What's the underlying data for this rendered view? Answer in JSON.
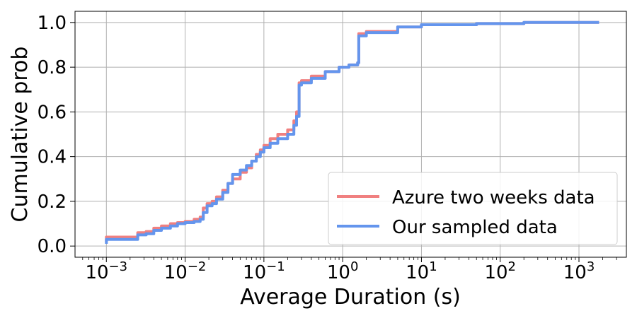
{
  "chart_data": {
    "type": "line",
    "title": "",
    "xlabel": "Average Duration (s)",
    "ylabel": "Cumulative prob",
    "xscale": "log",
    "xlim": [
      0.0004,
      4000
    ],
    "ylim": [
      -0.05,
      1.05
    ],
    "grid": true,
    "legend_position": "lower-right",
    "x_ticks": [
      {
        "value": 0.001,
        "base": "10",
        "exp": "−3"
      },
      {
        "value": 0.01,
        "base": "10",
        "exp": "−2"
      },
      {
        "value": 0.1,
        "base": "10",
        "exp": "−1"
      },
      {
        "value": 1,
        "base": "10",
        "exp": "0"
      },
      {
        "value": 10,
        "base": "10",
        "exp": "1"
      },
      {
        "value": 100,
        "base": "10",
        "exp": "2"
      },
      {
        "value": 1000,
        "base": "10",
        "exp": "3"
      }
    ],
    "y_ticks": [
      {
        "value": 0.0,
        "label": "0.0"
      },
      {
        "value": 0.2,
        "label": "0.2"
      },
      {
        "value": 0.4,
        "label": "0.4"
      },
      {
        "value": 0.6,
        "label": "0.6"
      },
      {
        "value": 0.8,
        "label": "0.8"
      },
      {
        "value": 1.0,
        "label": "1.0"
      }
    ],
    "series": [
      {
        "name": "Azure two weeks data",
        "color": "#f08080",
        "points": [
          [
            0.001,
            0.02
          ],
          [
            0.001,
            0.04
          ],
          [
            0.0018,
            0.04
          ],
          [
            0.0025,
            0.06
          ],
          [
            0.0032,
            0.065
          ],
          [
            0.004,
            0.08
          ],
          [
            0.005,
            0.09
          ],
          [
            0.0065,
            0.1
          ],
          [
            0.008,
            0.105
          ],
          [
            0.01,
            0.11
          ],
          [
            0.013,
            0.12
          ],
          [
            0.0155,
            0.13
          ],
          [
            0.017,
            0.17
          ],
          [
            0.019,
            0.19
          ],
          [
            0.022,
            0.2
          ],
          [
            0.025,
            0.22
          ],
          [
            0.03,
            0.25
          ],
          [
            0.035,
            0.28
          ],
          [
            0.04,
            0.3
          ],
          [
            0.05,
            0.33
          ],
          [
            0.06,
            0.35
          ],
          [
            0.07,
            0.38
          ],
          [
            0.08,
            0.41
          ],
          [
            0.09,
            0.43
          ],
          [
            0.1,
            0.45
          ],
          [
            0.12,
            0.48
          ],
          [
            0.15,
            0.5
          ],
          [
            0.2,
            0.52
          ],
          [
            0.24,
            0.56
          ],
          [
            0.26,
            0.6
          ],
          [
            0.28,
            0.62
          ],
          [
            0.28,
            0.73
          ],
          [
            0.3,
            0.74
          ],
          [
            0.4,
            0.76
          ],
          [
            0.6,
            0.78
          ],
          [
            0.9,
            0.8
          ],
          [
            1.2,
            0.81
          ],
          [
            1.55,
            0.82
          ],
          [
            1.6,
            0.95
          ],
          [
            2,
            0.96
          ],
          [
            5,
            0.98
          ],
          [
            10,
            0.99
          ],
          [
            50,
            0.995
          ],
          [
            200,
            1.0
          ],
          [
            1800,
            1.0
          ]
        ]
      },
      {
        "name": "Our sampled data",
        "color": "#6495ed",
        "points": [
          [
            0.001,
            0.01
          ],
          [
            0.001,
            0.03
          ],
          [
            0.0018,
            0.03
          ],
          [
            0.0025,
            0.05
          ],
          [
            0.0032,
            0.055
          ],
          [
            0.004,
            0.07
          ],
          [
            0.005,
            0.08
          ],
          [
            0.0065,
            0.09
          ],
          [
            0.008,
            0.1
          ],
          [
            0.01,
            0.105
          ],
          [
            0.013,
            0.11
          ],
          [
            0.0155,
            0.12
          ],
          [
            0.017,
            0.15
          ],
          [
            0.019,
            0.18
          ],
          [
            0.022,
            0.19
          ],
          [
            0.025,
            0.21
          ],
          [
            0.03,
            0.24
          ],
          [
            0.035,
            0.28
          ],
          [
            0.04,
            0.32
          ],
          [
            0.05,
            0.34
          ],
          [
            0.06,
            0.36
          ],
          [
            0.07,
            0.38
          ],
          [
            0.08,
            0.4
          ],
          [
            0.09,
            0.42
          ],
          [
            0.1,
            0.44
          ],
          [
            0.12,
            0.46
          ],
          [
            0.15,
            0.48
          ],
          [
            0.2,
            0.5
          ],
          [
            0.24,
            0.54
          ],
          [
            0.26,
            0.58
          ],
          [
            0.28,
            0.6
          ],
          [
            0.28,
            0.72
          ],
          [
            0.3,
            0.73
          ],
          [
            0.4,
            0.75
          ],
          [
            0.6,
            0.78
          ],
          [
            0.9,
            0.8
          ],
          [
            1.2,
            0.81
          ],
          [
            1.55,
            0.82
          ],
          [
            1.6,
            0.94
          ],
          [
            2,
            0.955
          ],
          [
            5,
            0.98
          ],
          [
            10,
            0.99
          ],
          [
            50,
            0.995
          ],
          [
            200,
            1.0
          ],
          [
            1800,
            1.0
          ]
        ]
      }
    ]
  }
}
